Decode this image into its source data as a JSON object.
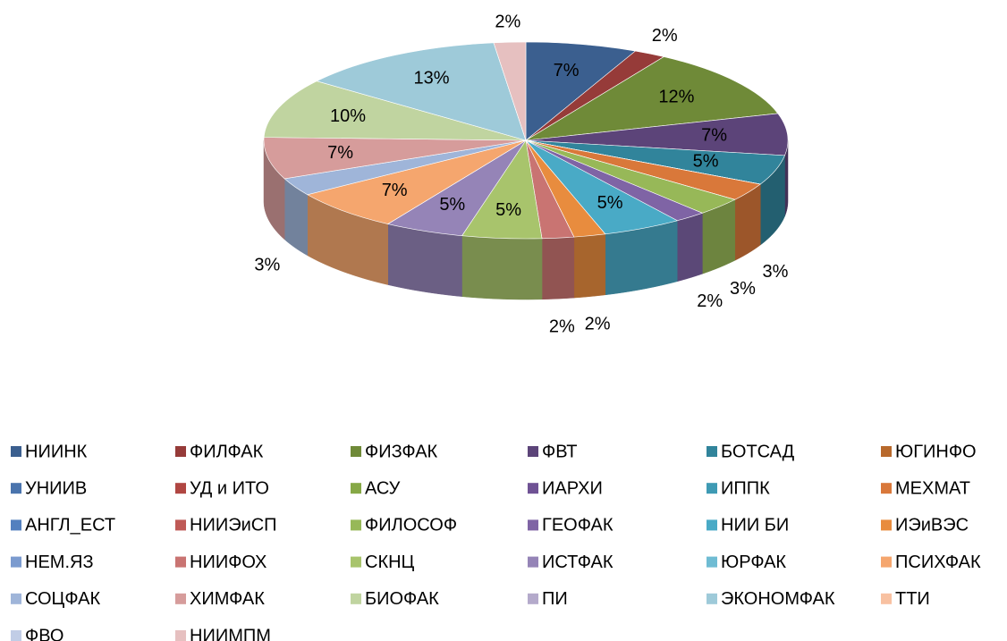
{
  "chart_data": {
    "type": "pie3d",
    "categories": [
      "НИИНК",
      "ФИЛФАК",
      "ФИЗФАК",
      "ФВТ",
      "БОТСАД",
      "ЮГИНФО",
      "УНИИВ",
      "УД и ИТО",
      "АСУ",
      "ИАРХИ",
      "ИППК",
      "МЕХМАТ",
      "АНГЛ_ЕСТ",
      "НИИЭиСП",
      "ФИЛОСОФ",
      "ГЕОФАК",
      "НИИ БИ",
      "ИЭиВЭС",
      "НЕМ.ЯЗ",
      "НИИФОХ",
      "СКНЦ",
      "ИСТФАК",
      "ЮРФАК",
      "ПСИХФАК",
      "СОЦФАК",
      "ХИМФАК",
      "БИОФАК",
      "ПИ",
      "ЭКОНОМФАК",
      "ТТИ",
      "ФВО",
      "НИИМПМ"
    ],
    "values": [
      7,
      2,
      12,
      7,
      5,
      0,
      0,
      0,
      0,
      0,
      0,
      3,
      0,
      0,
      3,
      2,
      5,
      2,
      0,
      2,
      5,
      5,
      0,
      7,
      3,
      7,
      10,
      0,
      13,
      0,
      0,
      2
    ],
    "value_labels": [
      "7%",
      "2%",
      "12%",
      "7%",
      "5%",
      null,
      null,
      null,
      null,
      null,
      null,
      "3%",
      null,
      null,
      "3%",
      "2%",
      "5%",
      "2%",
      null,
      "2%",
      "5%",
      "5%",
      null,
      "7%",
      "3%",
      "7%",
      "10%",
      null,
      "13%",
      null,
      null,
      "2%"
    ],
    "colors": [
      "#3b5f8f",
      "#963b39",
      "#6f8a38",
      "#5c4479",
      "#31849b",
      "#b8692c",
      "#4a74ad",
      "#b04642",
      "#86a846",
      "#6f5294",
      "#3e9ab4",
      "#d9783a",
      "#5380bf",
      "#bf5a56",
      "#97b858",
      "#7f64a5",
      "#49aac6",
      "#e88c3e",
      "#7b9bcf",
      "#c97472",
      "#a8c46c",
      "#9584b7",
      "#6fbcd3",
      "#f5a66e",
      "#9fb5d9",
      "#d69c9b",
      "#c0d4a0",
      "#b4aacb",
      "#9ecad9",
      "#f8c1a1",
      "#c1cde6",
      "#e6c0c0"
    ],
    "legend": "bottom"
  }
}
